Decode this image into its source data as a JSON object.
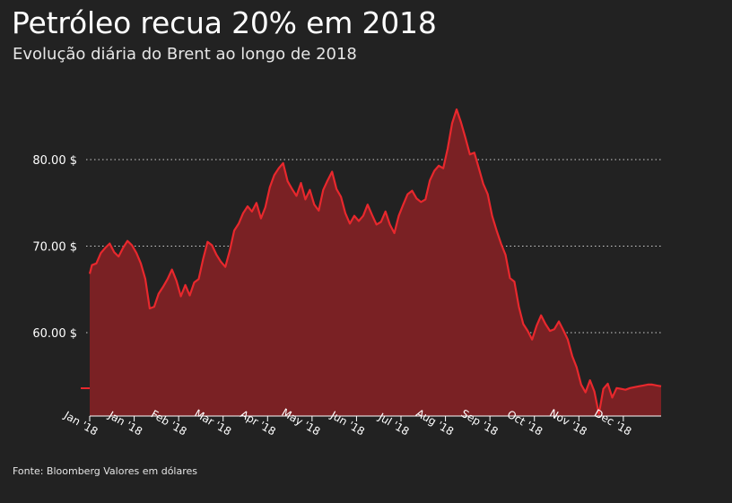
{
  "title": "Petróleo recua 20% em 2018",
  "subtitle": "Evolução diária do Brent ao longo de 2018",
  "source": "Fonte: Bloomberg Valores em dólares",
  "colors": {
    "background": "#222222",
    "line": "#e8282d",
    "area": "#7a2124",
    "grid": "#cccccc",
    "text": "#ffffff"
  },
  "chart_data": {
    "type": "area",
    "title": "Petróleo recua 20% em 2018",
    "subtitle": "Evolução diária do Brent ao longo de 2018",
    "xlabel": "",
    "ylabel": "",
    "ylim": [
      50,
      88
    ],
    "grid": "horizontal dotted",
    "y_ticks": [
      {
        "value": 60,
        "label": "60.00 $"
      },
      {
        "value": 70,
        "label": "70.00 $"
      },
      {
        "value": 80,
        "label": "80.00 $"
      }
    ],
    "x_ticks": [
      "Jan '18",
      "Jan '18",
      "Feb '18",
      "Mar '18",
      "Apr '18",
      "May '18",
      "Jun '18",
      "Jul '18",
      "Aug '18",
      "Sep '18",
      "Oct '18",
      "Nov '18",
      "Dec '18"
    ],
    "x_tick_positions": [
      0,
      1,
      2,
      3,
      4,
      5,
      6,
      7,
      8,
      9,
      10,
      11,
      12
    ],
    "x_range": [
      0,
      12.85
    ],
    "series": [
      {
        "x": [
          0,
          0.05,
          0.15,
          0.25,
          0.35,
          0.45,
          0.55,
          0.65,
          0.75,
          0.85,
          0.95,
          1.05,
          1.15,
          1.25,
          1.35,
          1.45,
          1.55,
          1.65,
          1.75,
          1.85,
          1.95,
          2.05,
          2.15,
          2.25,
          2.35,
          2.45,
          2.55,
          2.65,
          2.75,
          2.85,
          2.95,
          3.05,
          3.15,
          3.25,
          3.35,
          3.45,
          3.55,
          3.65,
          3.75,
          3.85,
          3.95,
          4.05,
          4.15,
          4.25,
          4.35,
          4.45,
          4.55,
          4.65,
          4.75,
          4.85,
          4.95,
          5.05,
          5.15,
          5.25,
          5.35,
          5.45,
          5.55,
          5.65,
          5.75,
          5.85,
          5.95,
          6.05,
          6.15,
          6.25,
          6.35,
          6.45,
          6.55,
          6.65,
          6.75,
          6.85,
          6.95,
          7.05,
          7.15,
          7.25,
          7.35,
          7.45,
          7.55,
          7.65,
          7.75,
          7.85,
          7.95,
          8.05,
          8.15,
          8.25,
          8.35,
          8.45,
          8.55,
          8.65,
          8.75,
          8.85,
          8.95,
          9.05,
          9.15,
          9.25,
          9.35,
          9.45,
          9.55,
          9.65,
          9.75,
          9.85,
          9.95,
          10.05,
          10.15,
          10.25,
          10.35,
          10.45,
          10.55,
          10.65,
          10.75,
          10.85,
          10.95,
          11.05,
          11.15,
          11.25,
          11.35,
          11.45,
          11.55,
          11.65,
          11.75,
          11.85,
          11.95,
          12.05,
          12.15,
          12.25,
          12.35,
          12.45,
          12.55,
          12.65,
          12.75,
          12.85
        ],
        "values": [
          66.8,
          67.8,
          68.0,
          69.2,
          69.8,
          70.3,
          69.3,
          68.8,
          69.8,
          70.6,
          70.1,
          69.2,
          68.0,
          66.2,
          62.8,
          63.0,
          64.5,
          65.3,
          66.2,
          67.3,
          66.0,
          64.2,
          65.5,
          64.3,
          65.8,
          66.2,
          68.5,
          70.5,
          70.1,
          69.0,
          68.2,
          67.6,
          69.5,
          71.8,
          72.6,
          73.8,
          74.6,
          74.0,
          75.0,
          73.2,
          74.5,
          76.8,
          78.2,
          79.0,
          79.6,
          77.5,
          76.6,
          75.8,
          77.3,
          75.4,
          76.5,
          74.8,
          74.1,
          76.5,
          77.6,
          78.6,
          76.6,
          75.7,
          73.8,
          72.6,
          73.5,
          72.9,
          73.5,
          74.8,
          73.6,
          72.5,
          72.8,
          74.0,
          72.5,
          71.5,
          73.5,
          74.8,
          76.0,
          76.4,
          75.5,
          75.1,
          75.4,
          77.6,
          78.7,
          79.3,
          79.0,
          81.3,
          84.2,
          85.8,
          84.3,
          82.5,
          80.6,
          80.8,
          79.0,
          77.2,
          76.0,
          73.5,
          71.8,
          70.3,
          69.0,
          66.3,
          65.9,
          63.0,
          61.0,
          60.2,
          59.2,
          60.8,
          62.0,
          61.0,
          60.2,
          60.4,
          61.3,
          60.3,
          59.2,
          57.3,
          56.0,
          54.0,
          53.1,
          54.5,
          53.2,
          50.6,
          53.5,
          54.1,
          52.5,
          53.6,
          53.5,
          53.4,
          53.6,
          53.7,
          53.8,
          53.9,
          54.0,
          54.0,
          53.9,
          53.8
        ],
        "note": ""
      }
    ]
  }
}
